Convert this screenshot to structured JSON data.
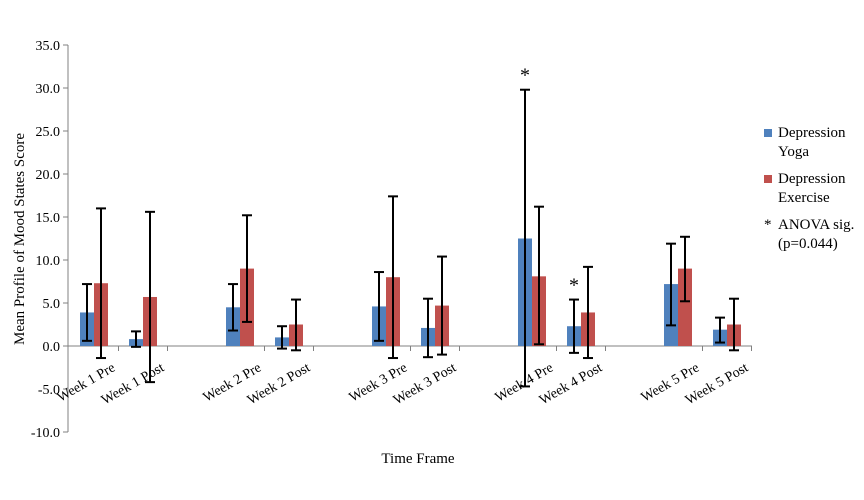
{
  "chart_data": {
    "type": "bar",
    "title": "",
    "xlabel": "Time Frame",
    "ylabel": "Mean Profile of Mood States Score",
    "ylim": [
      -10,
      35
    ],
    "yticks": [
      "35.0",
      "30.0",
      "25.0",
      "20.0",
      "15.0",
      "10.0",
      "5.0",
      "0.0",
      "-5.0",
      "-10.0"
    ],
    "categories": [
      "Week 1 Pre",
      "Week 1 Post",
      "Week 2 Pre",
      "Week 2 Post",
      "Week 3 Pre",
      "Week 3 Post",
      "Week 4 Pre",
      "Week 4 Post",
      "Week 5 Pre",
      "Week 5 Post"
    ],
    "series": [
      {
        "name": "Depression Yoga",
        "color": "#4F81BD",
        "values": [
          3.9,
          0.8,
          4.5,
          1.0,
          4.6,
          2.1,
          12.5,
          2.3,
          7.2,
          1.9
        ],
        "err_low": [
          0.6,
          -0.1,
          1.8,
          -0.3,
          0.6,
          -1.3,
          -4.7,
          -0.8,
          2.4,
          0.4
        ],
        "err_high": [
          7.2,
          1.7,
          7.2,
          2.3,
          8.6,
          5.5,
          29.8,
          5.4,
          11.9,
          3.3
        ]
      },
      {
        "name": "Depression Exercise",
        "color": "#C0504D",
        "values": [
          7.3,
          5.7,
          9.0,
          2.5,
          8.0,
          4.7,
          8.1,
          3.9,
          9.0,
          2.5
        ],
        "err_low": [
          -1.4,
          -4.2,
          2.8,
          -0.5,
          -1.4,
          -1.0,
          0.2,
          -1.4,
          5.2,
          -0.5
        ],
        "err_high": [
          16.0,
          15.6,
          15.2,
          5.4,
          17.4,
          10.4,
          16.2,
          9.2,
          12.7,
          5.5
        ]
      }
    ],
    "annotations": [
      {
        "text": "*",
        "category": "Week 4 Pre"
      },
      {
        "text": "*",
        "category": "Week 4 Post"
      }
    ],
    "legend": {
      "position": "right",
      "items": [
        {
          "label": "Depression Yoga",
          "color": "#4F81BD"
        },
        {
          "label": "Depression Exercise",
          "color": "#C0504D"
        }
      ],
      "note_mark": "*",
      "note": "ANOVA sig. (p=0.044)"
    },
    "grid": false
  }
}
